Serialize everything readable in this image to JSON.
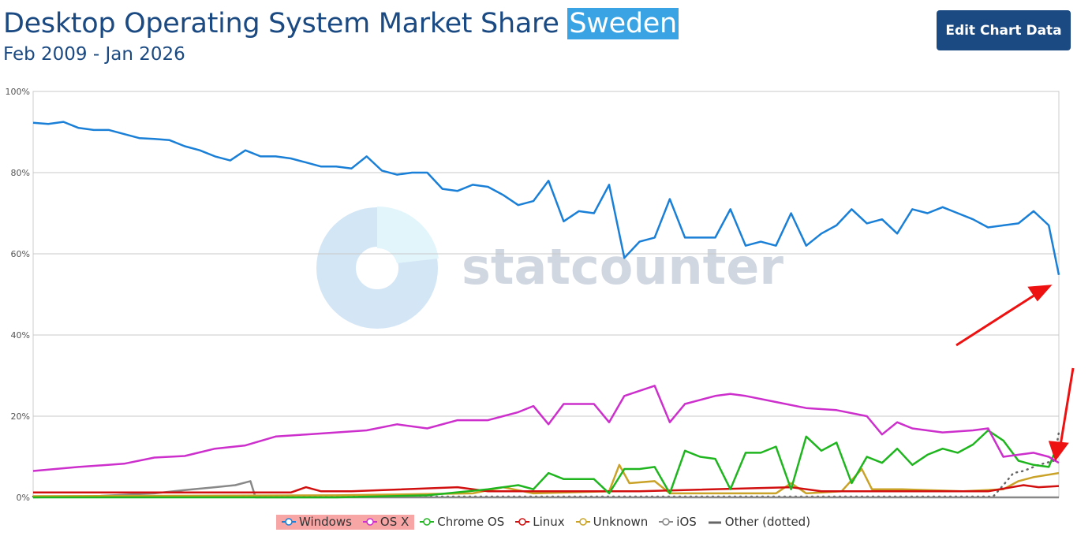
{
  "header": {
    "title": "Desktop Operating System Market Share",
    "title_highlight": "Sweden",
    "subtitle": "Feb 2009 - Jan 2026",
    "edit_button": "Edit Chart Data"
  },
  "watermark": "statcounter",
  "colors": {
    "Windows": "#1a7fd6",
    "OS X": "#cc2fcc",
    "Chrome OS": "#1fb51f",
    "Linux": "#d10f0f",
    "Unknown": "#c9a227",
    "iOS": "#888888",
    "Other (dotted)": "#555555",
    "arrows": "#ee1111",
    "title_highlight": "#3aa3e3",
    "legend_highlight": "#f7a5a5"
  },
  "chart_data": {
    "type": "line",
    "title": "Desktop Operating System Market Share Sweden",
    "subtitle": "Feb 2009 - Jan 2026",
    "x_range": [
      "2009-02",
      "2026-01"
    ],
    "ylim": [
      0,
      100
    ],
    "y_ticks": [
      "0%",
      "20%",
      "40%",
      "60%",
      "80%",
      "100%"
    ],
    "grid": true,
    "legend": "bottom",
    "annotations": [
      "red arrow pointing to Windows endpoint",
      "red arrow pointing to OS X endpoint"
    ],
    "series": [
      {
        "name": "Windows",
        "style": "solid",
        "points": [
          [
            "2009-02",
            92.3
          ],
          [
            "2009-05",
            92
          ],
          [
            "2009-08",
            92.5
          ],
          [
            "2009-11",
            91
          ],
          [
            "2010-02",
            90.5
          ],
          [
            "2010-05",
            90.5
          ],
          [
            "2010-08",
            89.5
          ],
          [
            "2010-11",
            88.5
          ],
          [
            "2011-02",
            88.3
          ],
          [
            "2011-05",
            88
          ],
          [
            "2011-08",
            86.5
          ],
          [
            "2011-11",
            85.5
          ],
          [
            "2012-02",
            84
          ],
          [
            "2012-05",
            83
          ],
          [
            "2012-08",
            85.5
          ],
          [
            "2012-11",
            84
          ],
          [
            "2013-02",
            84
          ],
          [
            "2013-05",
            83.5
          ],
          [
            "2013-08",
            82.5
          ],
          [
            "2013-11",
            81.5
          ],
          [
            "2014-02",
            81.5
          ],
          [
            "2014-05",
            81
          ],
          [
            "2014-08",
            84
          ],
          [
            "2014-11",
            80.5
          ],
          [
            "2015-02",
            79.5
          ],
          [
            "2015-05",
            80
          ],
          [
            "2015-08",
            80
          ],
          [
            "2015-11",
            76
          ],
          [
            "2016-02",
            75.5
          ],
          [
            "2016-05",
            77
          ],
          [
            "2016-08",
            76.5
          ],
          [
            "2016-11",
            74.5
          ],
          [
            "2017-02",
            72
          ],
          [
            "2017-05",
            73
          ],
          [
            "2017-08",
            78
          ],
          [
            "2017-11",
            68
          ],
          [
            "2018-02",
            70.5
          ],
          [
            "2018-05",
            70
          ],
          [
            "2018-08",
            77
          ],
          [
            "2018-11",
            59
          ],
          [
            "2019-02",
            63
          ],
          [
            "2019-05",
            64
          ],
          [
            "2019-08",
            73.5
          ],
          [
            "2019-11",
            64
          ],
          [
            "2020-02",
            64
          ],
          [
            "2020-05",
            64
          ],
          [
            "2020-08",
            71
          ],
          [
            "2020-11",
            62
          ],
          [
            "2021-02",
            63
          ],
          [
            "2021-05",
            62
          ],
          [
            "2021-08",
            70
          ],
          [
            "2021-11",
            62
          ],
          [
            "2022-02",
            65
          ],
          [
            "2022-05",
            67
          ],
          [
            "2022-08",
            71
          ],
          [
            "2022-11",
            67.5
          ],
          [
            "2023-02",
            68.5
          ],
          [
            "2023-05",
            65
          ],
          [
            "2023-08",
            71
          ],
          [
            "2023-11",
            70
          ],
          [
            "2024-02",
            71.5
          ],
          [
            "2024-05",
            70
          ],
          [
            "2024-08",
            68.5
          ],
          [
            "2024-11",
            66.5
          ],
          [
            "2025-02",
            67
          ],
          [
            "2025-05",
            67.5
          ],
          [
            "2025-08",
            70.5
          ],
          [
            "2025-11",
            67
          ],
          [
            "2026-01",
            54.8
          ]
        ]
      },
      {
        "name": "OS X",
        "style": "solid",
        "points": [
          [
            "2009-02",
            6.5
          ],
          [
            "2009-11",
            7.5
          ],
          [
            "2010-08",
            8.3
          ],
          [
            "2011-02",
            9.8
          ],
          [
            "2011-08",
            10.2
          ],
          [
            "2012-02",
            12
          ],
          [
            "2012-08",
            12.8
          ],
          [
            "2013-02",
            15
          ],
          [
            "2013-08",
            15.5
          ],
          [
            "2014-02",
            16
          ],
          [
            "2014-08",
            16.5
          ],
          [
            "2015-02",
            18
          ],
          [
            "2015-08",
            17
          ],
          [
            "2016-02",
            19
          ],
          [
            "2016-08",
            19
          ],
          [
            "2017-02",
            21
          ],
          [
            "2017-05",
            22.5
          ],
          [
            "2017-08",
            18
          ],
          [
            "2017-11",
            23
          ],
          [
            "2018-05",
            23
          ],
          [
            "2018-08",
            18.5
          ],
          [
            "2018-11",
            25
          ],
          [
            "2019-05",
            27.5
          ],
          [
            "2019-08",
            18.5
          ],
          [
            "2019-11",
            23
          ],
          [
            "2020-05",
            25
          ],
          [
            "2020-08",
            25.5
          ],
          [
            "2020-11",
            25
          ],
          [
            "2021-05",
            23.5
          ],
          [
            "2021-11",
            22
          ],
          [
            "2022-05",
            21.5
          ],
          [
            "2022-11",
            20
          ],
          [
            "2023-02",
            15.5
          ],
          [
            "2023-05",
            18.5
          ],
          [
            "2023-08",
            17
          ],
          [
            "2024-02",
            16
          ],
          [
            "2024-08",
            16.5
          ],
          [
            "2024-11",
            17
          ],
          [
            "2025-02",
            10
          ],
          [
            "2025-05",
            10.5
          ],
          [
            "2025-08",
            11
          ],
          [
            "2025-11",
            10
          ],
          [
            "2026-01",
            8.5
          ]
        ]
      },
      {
        "name": "Chrome OS",
        "style": "solid",
        "points": [
          [
            "2009-02",
            0
          ],
          [
            "2014-02",
            0
          ],
          [
            "2015-08",
            0.5
          ],
          [
            "2016-08",
            2
          ],
          [
            "2017-02",
            3
          ],
          [
            "2017-05",
            2
          ],
          [
            "2017-08",
            6
          ],
          [
            "2017-11",
            4.5
          ],
          [
            "2018-05",
            4.5
          ],
          [
            "2018-08",
            1
          ],
          [
            "2018-11",
            7
          ],
          [
            "2019-02",
            7
          ],
          [
            "2019-05",
            7.5
          ],
          [
            "2019-08",
            1
          ],
          [
            "2019-11",
            11.5
          ],
          [
            "2020-02",
            10
          ],
          [
            "2020-05",
            9.5
          ],
          [
            "2020-08",
            2
          ],
          [
            "2020-11",
            11
          ],
          [
            "2021-02",
            11
          ],
          [
            "2021-05",
            12.5
          ],
          [
            "2021-08",
            2
          ],
          [
            "2021-11",
            15
          ],
          [
            "2022-02",
            11.5
          ],
          [
            "2022-05",
            13.5
          ],
          [
            "2022-08",
            3.5
          ],
          [
            "2022-11",
            10
          ],
          [
            "2023-02",
            8.5
          ],
          [
            "2023-05",
            12
          ],
          [
            "2023-08",
            8
          ],
          [
            "2023-11",
            10.5
          ],
          [
            "2024-02",
            12
          ],
          [
            "2024-05",
            11
          ],
          [
            "2024-08",
            13
          ],
          [
            "2024-11",
            16.5
          ],
          [
            "2025-02",
            14
          ],
          [
            "2025-05",
            9
          ],
          [
            "2025-08",
            8
          ],
          [
            "2025-11",
            7.5
          ],
          [
            "2026-01",
            13.5
          ]
        ]
      },
      {
        "name": "Linux",
        "style": "solid",
        "points": [
          [
            "2009-02",
            1.2
          ],
          [
            "2013-05",
            1.2
          ],
          [
            "2013-08",
            2.5
          ],
          [
            "2013-11",
            1.5
          ],
          [
            "2014-05",
            1.5
          ],
          [
            "2016-02",
            2.5
          ],
          [
            "2016-08",
            1.5
          ],
          [
            "2018-05",
            1.5
          ],
          [
            "2019-02",
            1.5
          ],
          [
            "2021-08",
            2.5
          ],
          [
            "2022-02",
            1.5
          ],
          [
            "2024-11",
            1.5
          ],
          [
            "2025-06",
            3
          ],
          [
            "2025-09",
            2.5
          ],
          [
            "2026-01",
            2.8
          ]
        ]
      },
      {
        "name": "Unknown",
        "style": "solid",
        "points": [
          [
            "2009-02",
            0.3
          ],
          [
            "2014-02",
            0.5
          ],
          [
            "2016-05",
            1
          ],
          [
            "2016-11",
            2.5
          ],
          [
            "2017-05",
            1
          ],
          [
            "2018-08",
            1.5
          ],
          [
            "2018-10",
            8
          ],
          [
            "2018-12",
            3.5
          ],
          [
            "2019-05",
            4
          ],
          [
            "2019-08",
            1
          ],
          [
            "2020-05",
            1
          ],
          [
            "2021-05",
            1
          ],
          [
            "2021-08",
            3.5
          ],
          [
            "2021-11",
            1
          ],
          [
            "2022-06",
            1.5
          ],
          [
            "2022-10",
            7
          ],
          [
            "2022-12",
            2
          ],
          [
            "2023-06",
            2
          ],
          [
            "2024-06",
            1.5
          ],
          [
            "2025-02",
            2
          ],
          [
            "2025-05",
            4
          ],
          [
            "2025-08",
            5
          ],
          [
            "2026-01",
            6
          ]
        ]
      },
      {
        "name": "iOS",
        "style": "solid",
        "points": [
          [
            "2009-02",
            0
          ],
          [
            "2010-02",
            0.3
          ],
          [
            "2011-02",
            1
          ],
          [
            "2011-08",
            1.8
          ],
          [
            "2012-02",
            2.5
          ],
          [
            "2012-06",
            3
          ],
          [
            "2012-09",
            4
          ],
          [
            "2012-10",
            0
          ],
          [
            "2026-01",
            0
          ]
        ]
      },
      {
        "name": "Other (dotted)",
        "style": "dotted",
        "points": [
          [
            "2009-02",
            0.2
          ],
          [
            "2024-12",
            0.2
          ],
          [
            "2025-02",
            3
          ],
          [
            "2025-04",
            6
          ],
          [
            "2025-06",
            6.5
          ],
          [
            "2025-09",
            8
          ],
          [
            "2025-12",
            9
          ],
          [
            "2026-01",
            16
          ]
        ]
      }
    ]
  }
}
